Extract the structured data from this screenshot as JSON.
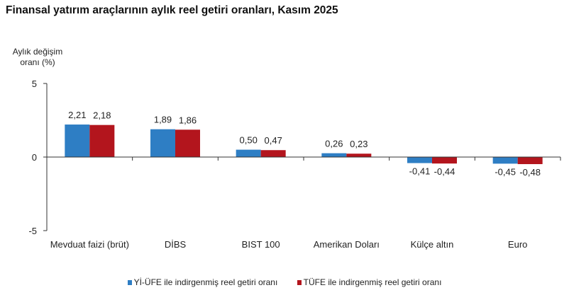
{
  "chart_data": {
    "type": "bar",
    "title": "Finansal yatırım araçlarının aylık reel getiri oranları, Kasım 2025",
    "ylabel": "Aylık değişim oranı (%)",
    "xlabel": "",
    "ylim": [
      -5,
      5
    ],
    "yticks": [
      5,
      0,
      -5
    ],
    "grid": false,
    "legend_position": "bottom",
    "categories": [
      "Mevduat faizi (brüt)",
      "DİBS",
      "BIST 100",
      "Amerikan Doları",
      "Külçe altın",
      "Euro"
    ],
    "series": [
      {
        "name": "Yİ-ÜFE ile indirgenmiş reel getiri oranı",
        "color": "#2e7ec4",
        "values": [
          2.21,
          1.89,
          0.5,
          0.26,
          -0.41,
          -0.45
        ],
        "labels": [
          "2,21",
          "1,89",
          "0,50",
          "0,26",
          "-0,41",
          "-0,45"
        ]
      },
      {
        "name": "TÜFE ile indirgenmiş reel getiri oranı",
        "color": "#b3151d",
        "values": [
          2.18,
          1.86,
          0.47,
          0.23,
          -0.44,
          -0.48
        ],
        "labels": [
          "2,18",
          "1,86",
          "0,47",
          "0,23",
          "-0,44",
          "-0,48"
        ]
      }
    ]
  }
}
